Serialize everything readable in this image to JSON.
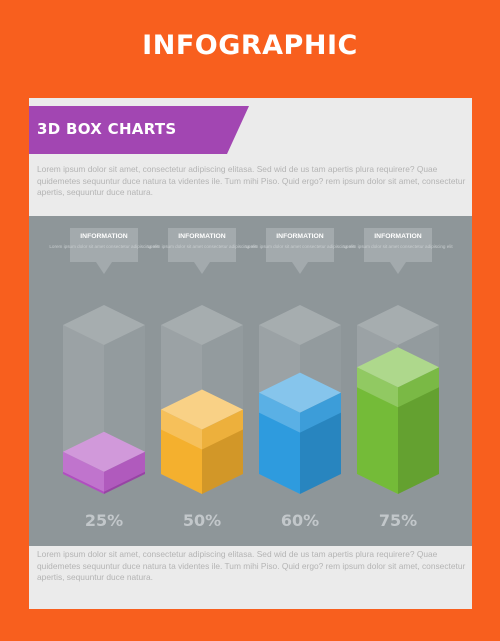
{
  "page": {
    "title": "INFOGRAPHIC",
    "subtitle": "3D BOX CHARTS",
    "paragraph_top": "Lorem ipsum dolor sit amet, consectetur adipiscing elitasa. Sed wid de us tam apertis plura requirere? Quae quidemetes sequuntur duce natura ta videntes ile. Tum mihi Piso. Quid ergo? rem ipsum dolor sit amet, consectetur apertis, sequuntur duce natura.",
    "paragraph_bottom": "Lorem ipsum dolor sit amet, consectetur adipiscing elitasa. Sed wid de us tam apertis plura requirere? Quae quidemetes sequuntur duce natura ta videntes ile. Tum mihi Piso. Quid ergo? rem ipsum dolor sit amet, consectetur apertis, sequuntur duce natura."
  },
  "colors": {
    "background": "#f85f1e",
    "banner": "#a246b2",
    "panel": "#8e9699"
  },
  "chart_data": {
    "type": "bar",
    "categories": [
      "INFORMATION",
      "INFORMATION",
      "INFORMATION",
      "INFORMATION"
    ],
    "values": [
      25,
      50,
      60,
      75
    ],
    "value_labels": [
      "25%",
      "50%",
      "60%",
      "75%"
    ],
    "ylim": [
      0,
      100
    ],
    "series_colors": [
      "#b04fbf",
      "#f4b02e",
      "#2e9bde",
      "#74bb38"
    ],
    "callout_body": "Lorem ipsum dolor sit amet consectetur adipiscing elit"
  }
}
